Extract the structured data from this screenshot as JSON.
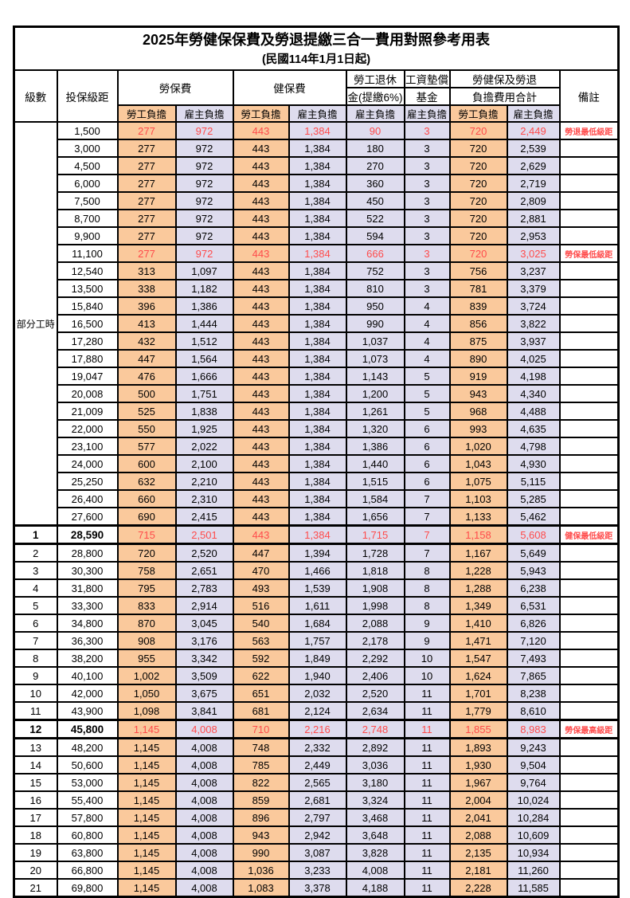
{
  "title": "2025年勞健保保費及勞退提繳三合一費用對照參考用表",
  "subtitle": "(民國114年1月1日起)",
  "header": {
    "level": "級數",
    "bracket": "投保級距",
    "labor_fee": "勞保費",
    "health_fee": "健保費",
    "pension_line1": "勞工退休",
    "pension_line2": "金(提繳6%)",
    "wage_fund_line1": "工資墊償",
    "wage_fund_line2": "基金",
    "total_line1": "勞健保及勞退",
    "total_line2": "負擔費用合計",
    "employee_label": "勞工負擔",
    "employer_label": "雇主負擔",
    "note": "備註"
  },
  "group": {
    "label": "部分工時",
    "span": 23
  },
  "colors": {
    "employee_bg": "#FAC99C",
    "employer_bg": "#DEDCEE",
    "highlight_text": "#FF4B4B"
  },
  "rows": [
    {
      "level": "",
      "bracket": "1,500",
      "values": [
        "277",
        "972",
        "443",
        "1,384",
        "90",
        "3",
        "720",
        "2,449"
      ],
      "note": "勞退最低級距",
      "highlight": true,
      "bold": false,
      "thick": false,
      "group_start": true
    },
    {
      "level": "",
      "bracket": "3,000",
      "values": [
        "277",
        "972",
        "443",
        "1,384",
        "180",
        "3",
        "720",
        "2,539"
      ],
      "note": "",
      "highlight": false,
      "bold": false,
      "thick": false
    },
    {
      "level": "",
      "bracket": "4,500",
      "values": [
        "277",
        "972",
        "443",
        "1,384",
        "270",
        "3",
        "720",
        "2,629"
      ],
      "note": "",
      "highlight": false,
      "bold": false,
      "thick": false
    },
    {
      "level": "",
      "bracket": "6,000",
      "values": [
        "277",
        "972",
        "443",
        "1,384",
        "360",
        "3",
        "720",
        "2,719"
      ],
      "note": "",
      "highlight": false,
      "bold": false,
      "thick": false
    },
    {
      "level": "",
      "bracket": "7,500",
      "values": [
        "277",
        "972",
        "443",
        "1,384",
        "450",
        "3",
        "720",
        "2,809"
      ],
      "note": "",
      "highlight": false,
      "bold": false,
      "thick": false
    },
    {
      "level": "",
      "bracket": "8,700",
      "values": [
        "277",
        "972",
        "443",
        "1,384",
        "522",
        "3",
        "720",
        "2,881"
      ],
      "note": "",
      "highlight": false,
      "bold": false,
      "thick": false
    },
    {
      "level": "",
      "bracket": "9,900",
      "values": [
        "277",
        "972",
        "443",
        "1,384",
        "594",
        "3",
        "720",
        "2,953"
      ],
      "note": "",
      "highlight": false,
      "bold": false,
      "thick": false
    },
    {
      "level": "",
      "bracket": "11,100",
      "values": [
        "277",
        "972",
        "443",
        "1,384",
        "666",
        "3",
        "720",
        "3,025"
      ],
      "note": "勞保最低級距",
      "highlight": true,
      "bold": false,
      "thick": false
    },
    {
      "level": "",
      "bracket": "12,540",
      "values": [
        "313",
        "1,097",
        "443",
        "1,384",
        "752",
        "3",
        "756",
        "3,237"
      ],
      "note": "",
      "highlight": false,
      "bold": false,
      "thick": false
    },
    {
      "level": "",
      "bracket": "13,500",
      "values": [
        "338",
        "1,182",
        "443",
        "1,384",
        "810",
        "3",
        "781",
        "3,379"
      ],
      "note": "",
      "highlight": false,
      "bold": false,
      "thick": false
    },
    {
      "level": "",
      "bracket": "15,840",
      "values": [
        "396",
        "1,386",
        "443",
        "1,384",
        "950",
        "4",
        "839",
        "3,724"
      ],
      "note": "",
      "highlight": false,
      "bold": false,
      "thick": false
    },
    {
      "level": "",
      "bracket": "16,500",
      "values": [
        "413",
        "1,444",
        "443",
        "1,384",
        "990",
        "4",
        "856",
        "3,822"
      ],
      "note": "",
      "highlight": false,
      "bold": false,
      "thick": false
    },
    {
      "level": "",
      "bracket": "17,280",
      "values": [
        "432",
        "1,512",
        "443",
        "1,384",
        "1,037",
        "4",
        "875",
        "3,937"
      ],
      "note": "",
      "highlight": false,
      "bold": false,
      "thick": false
    },
    {
      "level": "",
      "bracket": "17,880",
      "values": [
        "447",
        "1,564",
        "443",
        "1,384",
        "1,073",
        "4",
        "890",
        "4,025"
      ],
      "note": "",
      "highlight": false,
      "bold": false,
      "thick": false
    },
    {
      "level": "",
      "bracket": "19,047",
      "values": [
        "476",
        "1,666",
        "443",
        "1,384",
        "1,143",
        "5",
        "919",
        "4,198"
      ],
      "note": "",
      "highlight": false,
      "bold": false,
      "thick": false
    },
    {
      "level": "",
      "bracket": "20,008",
      "values": [
        "500",
        "1,751",
        "443",
        "1,384",
        "1,200",
        "5",
        "943",
        "4,340"
      ],
      "note": "",
      "highlight": false,
      "bold": false,
      "thick": false
    },
    {
      "level": "",
      "bracket": "21,009",
      "values": [
        "525",
        "1,838",
        "443",
        "1,384",
        "1,261",
        "5",
        "968",
        "4,488"
      ],
      "note": "",
      "highlight": false,
      "bold": false,
      "thick": false
    },
    {
      "level": "",
      "bracket": "22,000",
      "values": [
        "550",
        "1,925",
        "443",
        "1,384",
        "1,320",
        "6",
        "993",
        "4,635"
      ],
      "note": "",
      "highlight": false,
      "bold": false,
      "thick": false
    },
    {
      "level": "",
      "bracket": "23,100",
      "values": [
        "577",
        "2,022",
        "443",
        "1,384",
        "1,386",
        "6",
        "1,020",
        "4,798"
      ],
      "note": "",
      "highlight": false,
      "bold": false,
      "thick": false
    },
    {
      "level": "",
      "bracket": "24,000",
      "values": [
        "600",
        "2,100",
        "443",
        "1,384",
        "1,440",
        "6",
        "1,043",
        "4,930"
      ],
      "note": "",
      "highlight": false,
      "bold": false,
      "thick": false
    },
    {
      "level": "",
      "bracket": "25,250",
      "values": [
        "632",
        "2,210",
        "443",
        "1,384",
        "1,515",
        "6",
        "1,075",
        "5,115"
      ],
      "note": "",
      "highlight": false,
      "bold": false,
      "thick": false
    },
    {
      "level": "",
      "bracket": "26,400",
      "values": [
        "660",
        "2,310",
        "443",
        "1,384",
        "1,584",
        "7",
        "1,103",
        "5,285"
      ],
      "note": "",
      "highlight": false,
      "bold": false,
      "thick": false
    },
    {
      "level": "",
      "bracket": "27,600",
      "values": [
        "690",
        "2,415",
        "443",
        "1,384",
        "1,656",
        "7",
        "1,133",
        "5,462"
      ],
      "note": "",
      "highlight": false,
      "bold": false,
      "thick": false
    },
    {
      "level": "1",
      "bracket": "28,590",
      "values": [
        "715",
        "2,501",
        "443",
        "1,384",
        "1,715",
        "7",
        "1,158",
        "5,608"
      ],
      "note": "健保最低級距",
      "highlight": true,
      "bold": true,
      "thick": true
    },
    {
      "level": "2",
      "bracket": "28,800",
      "values": [
        "720",
        "2,520",
        "447",
        "1,394",
        "1,728",
        "7",
        "1,167",
        "5,649"
      ],
      "note": "",
      "highlight": false,
      "bold": false,
      "thick": false
    },
    {
      "level": "3",
      "bracket": "30,300",
      "values": [
        "758",
        "2,651",
        "470",
        "1,466",
        "1,818",
        "8",
        "1,228",
        "5,943"
      ],
      "note": "",
      "highlight": false,
      "bold": false,
      "thick": false
    },
    {
      "level": "4",
      "bracket": "31,800",
      "values": [
        "795",
        "2,783",
        "493",
        "1,539",
        "1,908",
        "8",
        "1,288",
        "6,238"
      ],
      "note": "",
      "highlight": false,
      "bold": false,
      "thick": false
    },
    {
      "level": "5",
      "bracket": "33,300",
      "values": [
        "833",
        "2,914",
        "516",
        "1,611",
        "1,998",
        "8",
        "1,349",
        "6,531"
      ],
      "note": "",
      "highlight": false,
      "bold": false,
      "thick": false
    },
    {
      "level": "6",
      "bracket": "34,800",
      "values": [
        "870",
        "3,045",
        "540",
        "1,684",
        "2,088",
        "9",
        "1,410",
        "6,826"
      ],
      "note": "",
      "highlight": false,
      "bold": false,
      "thick": false
    },
    {
      "level": "7",
      "bracket": "36,300",
      "values": [
        "908",
        "3,176",
        "563",
        "1,757",
        "2,178",
        "9",
        "1,471",
        "7,120"
      ],
      "note": "",
      "highlight": false,
      "bold": false,
      "thick": false
    },
    {
      "level": "8",
      "bracket": "38,200",
      "values": [
        "955",
        "3,342",
        "592",
        "1,849",
        "2,292",
        "10",
        "1,547",
        "7,493"
      ],
      "note": "",
      "highlight": false,
      "bold": false,
      "thick": false
    },
    {
      "level": "9",
      "bracket": "40,100",
      "values": [
        "1,002",
        "3,509",
        "622",
        "1,940",
        "2,406",
        "10",
        "1,624",
        "7,865"
      ],
      "note": "",
      "highlight": false,
      "bold": false,
      "thick": false
    },
    {
      "level": "10",
      "bracket": "42,000",
      "values": [
        "1,050",
        "3,675",
        "651",
        "2,032",
        "2,520",
        "11",
        "1,701",
        "8,238"
      ],
      "note": "",
      "highlight": false,
      "bold": false,
      "thick": false
    },
    {
      "level": "11",
      "bracket": "43,900",
      "values": [
        "1,098",
        "3,841",
        "681",
        "2,124",
        "2,634",
        "11",
        "1,779",
        "8,610"
      ],
      "note": "",
      "highlight": false,
      "bold": false,
      "thick": false
    },
    {
      "level": "12",
      "bracket": "45,800",
      "values": [
        "1,145",
        "4,008",
        "710",
        "2,216",
        "2,748",
        "11",
        "1,855",
        "8,983"
      ],
      "note": "勞保最高級距",
      "highlight": true,
      "bold": true,
      "thick": true
    },
    {
      "level": "13",
      "bracket": "48,200",
      "values": [
        "1,145",
        "4,008",
        "748",
        "2,332",
        "2,892",
        "11",
        "1,893",
        "9,243"
      ],
      "note": "",
      "highlight": false,
      "bold": false,
      "thick": false
    },
    {
      "level": "14",
      "bracket": "50,600",
      "values": [
        "1,145",
        "4,008",
        "785",
        "2,449",
        "3,036",
        "11",
        "1,930",
        "9,504"
      ],
      "note": "",
      "highlight": false,
      "bold": false,
      "thick": false
    },
    {
      "level": "15",
      "bracket": "53,000",
      "values": [
        "1,145",
        "4,008",
        "822",
        "2,565",
        "3,180",
        "11",
        "1,967",
        "9,764"
      ],
      "note": "",
      "highlight": false,
      "bold": false,
      "thick": false
    },
    {
      "level": "16",
      "bracket": "55,400",
      "values": [
        "1,145",
        "4,008",
        "859",
        "2,681",
        "3,324",
        "11",
        "2,004",
        "10,024"
      ],
      "note": "",
      "highlight": false,
      "bold": false,
      "thick": false
    },
    {
      "level": "17",
      "bracket": "57,800",
      "values": [
        "1,145",
        "4,008",
        "896",
        "2,797",
        "3,468",
        "11",
        "2,041",
        "10,284"
      ],
      "note": "",
      "highlight": false,
      "bold": false,
      "thick": false
    },
    {
      "level": "18",
      "bracket": "60,800",
      "values": [
        "1,145",
        "4,008",
        "943",
        "2,942",
        "3,648",
        "11",
        "2,088",
        "10,609"
      ],
      "note": "",
      "highlight": false,
      "bold": false,
      "thick": false
    },
    {
      "level": "19",
      "bracket": "63,800",
      "values": [
        "1,145",
        "4,008",
        "990",
        "3,087",
        "3,828",
        "11",
        "2,135",
        "10,934"
      ],
      "note": "",
      "highlight": false,
      "bold": false,
      "thick": false
    },
    {
      "level": "20",
      "bracket": "66,800",
      "values": [
        "1,145",
        "4,008",
        "1,036",
        "3,233",
        "4,008",
        "11",
        "2,181",
        "11,260"
      ],
      "note": "",
      "highlight": false,
      "bold": false,
      "thick": false
    },
    {
      "level": "21",
      "bracket": "69,800",
      "values": [
        "1,145",
        "4,008",
        "1,083",
        "3,378",
        "4,188",
        "11",
        "2,228",
        "11,585"
      ],
      "note": "",
      "highlight": false,
      "bold": false,
      "thick": false
    }
  ]
}
